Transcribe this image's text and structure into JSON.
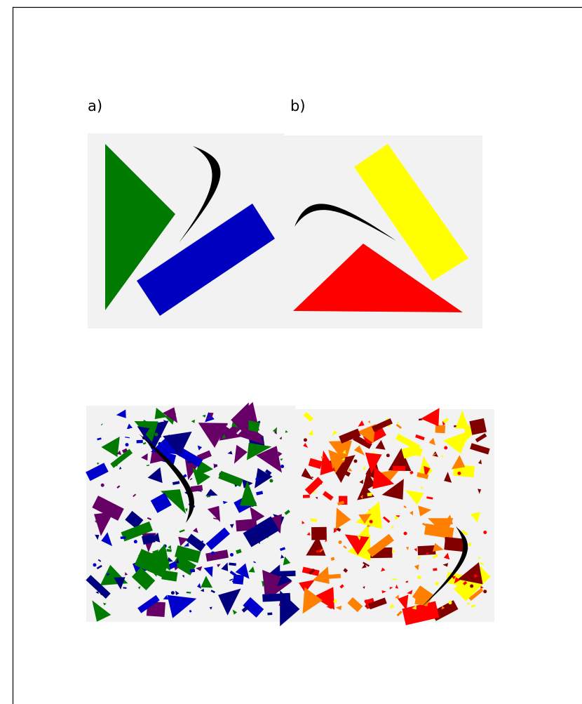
{
  "panels": {
    "a": {
      "label": "a)"
    },
    "b": {
      "label": "b)"
    }
  }
}
